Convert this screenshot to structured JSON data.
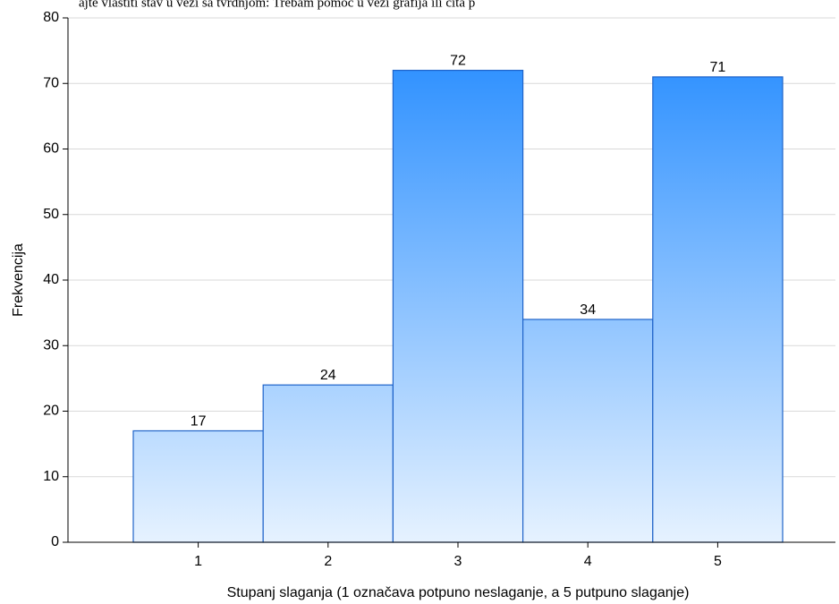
{
  "chart_data": {
    "type": "bar",
    "title": "ajte vlastiti stav u vezi sa tvrdnjom: Trebam pomoć u vezi grafija ili čita p",
    "xlabel": "Stupanj slaganja (1 označava potpuno neslaganje, a 5 putpuno slaganje)",
    "ylabel": "Frekvencija",
    "categories": [
      "1",
      "2",
      "3",
      "4",
      "5"
    ],
    "values": [
      17,
      24,
      72,
      34,
      71
    ],
    "ylim": [
      0,
      80
    ],
    "yticks": [
      0,
      10,
      20,
      30,
      40,
      50,
      60,
      70,
      80
    ],
    "grid": true,
    "colors": {
      "bar_top": "#1e88ff",
      "bar_bottom": "#e6f2ff",
      "bar_edge": "#1f63c9"
    }
  }
}
